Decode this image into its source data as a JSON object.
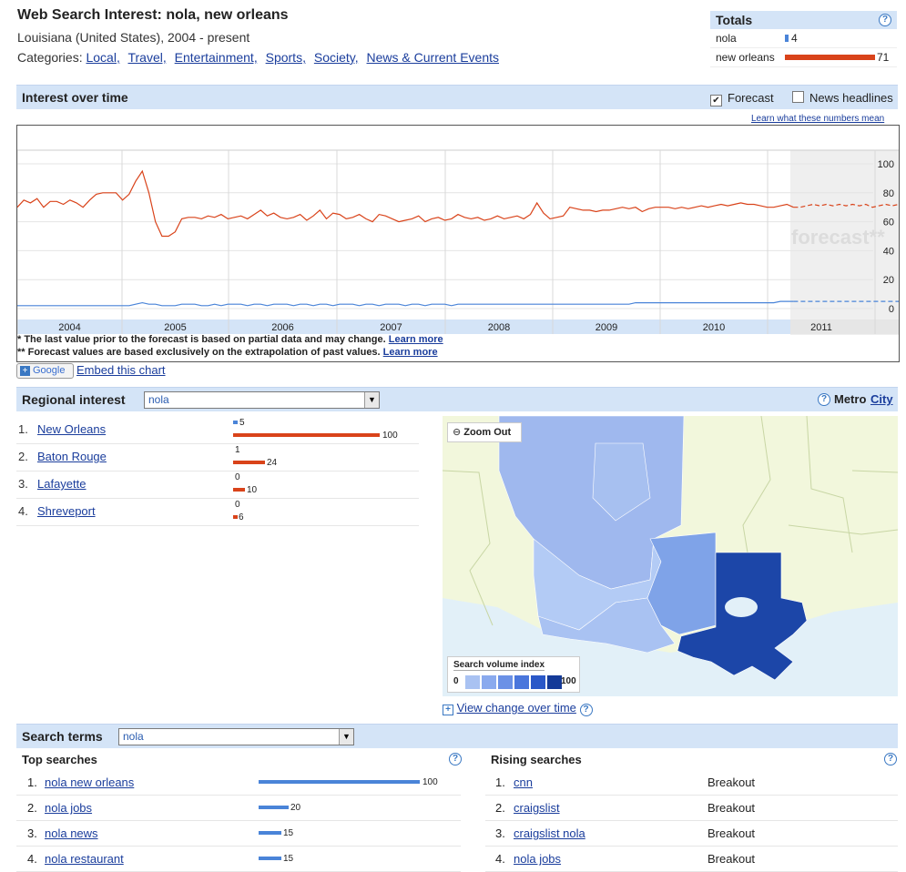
{
  "header": {
    "title": "Web Search Interest: nola, new orleans",
    "subtitle": "Louisiana (United States), 2004 - present",
    "categories_label": "Categories:",
    "categories": [
      "Local,",
      "Travel,",
      "Entertainment,",
      "Sports,",
      "Society,",
      "News & Current Events"
    ]
  },
  "totals": {
    "title": "Totals",
    "rows": [
      {
        "label": "nola",
        "value": "4",
        "color": "#4a84d8",
        "fraction": 0.056
      },
      {
        "label": "new orleans",
        "value": "71",
        "color": "#d9431a",
        "fraction": 1.0
      }
    ]
  },
  "interest": {
    "title": "Interest over time",
    "forecast_label": "Forecast",
    "forecast_checked": true,
    "news_label": "News headlines",
    "news_checked": false,
    "learn_link": "Learn what these numbers mean",
    "note1": "* The last value prior to the forecast is based on partial data and may change.",
    "note2": "** Forecast values are based exclusively on the extrapolation of past values.",
    "learn_more": "Learn more",
    "forecast_watermark": "forecast**",
    "google_button": "Google",
    "embed_link": "Embed this chart"
  },
  "chart_data": {
    "type": "line",
    "x_labels": [
      "2004",
      "2005",
      "2006",
      "2007",
      "2008",
      "2009",
      "2010",
      "2011"
    ],
    "y_ticks": [
      "100",
      "80",
      "60",
      "40",
      "20",
      "0"
    ],
    "ylim": [
      0,
      100
    ],
    "series": [
      {
        "name": "new orleans",
        "color": "#d9431a",
        "values": [
          70,
          75,
          73,
          76,
          70,
          74,
          74,
          72,
          75,
          73,
          70,
          75,
          79,
          80,
          80,
          80,
          75,
          79,
          88,
          95,
          80,
          60,
          50,
          50,
          53,
          62,
          63,
          63,
          62,
          64,
          63,
          65,
          62,
          63,
          64,
          62,
          65,
          68,
          64,
          66,
          63,
          62,
          63,
          65,
          61,
          64,
          68,
          62,
          66,
          65,
          62,
          63,
          65,
          62,
          60,
          65,
          64,
          62,
          60,
          61,
          62,
          64,
          60,
          62,
          63,
          61,
          62,
          65,
          63,
          62,
          63,
          61,
          62,
          64,
          62,
          63,
          64,
          62,
          65,
          73,
          66,
          62,
          63,
          64,
          70,
          69,
          68,
          68,
          67,
          68,
          68,
          69,
          70,
          69,
          70,
          67,
          69,
          70,
          70,
          70,
          69,
          70,
          69,
          70,
          71,
          70,
          71,
          72,
          71,
          72,
          73,
          72,
          72,
          71,
          70,
          70,
          71,
          72,
          70,
          70,
          71,
          72,
          71,
          72,
          71,
          72,
          71,
          72,
          71,
          72,
          70,
          71,
          72,
          71,
          72
        ],
        "forecast_from": 118
      },
      {
        "name": "nola",
        "color": "#4a84d8",
        "values": [
          2,
          2,
          2,
          2,
          2,
          2,
          2,
          2,
          2,
          2,
          2,
          2,
          2,
          2,
          2,
          2,
          2,
          2,
          3,
          4,
          3,
          3,
          2,
          2,
          2,
          3,
          3,
          3,
          2,
          2,
          3,
          2,
          3,
          3,
          3,
          2,
          3,
          3,
          2,
          3,
          3,
          3,
          2,
          3,
          3,
          2,
          3,
          3,
          2,
          3,
          3,
          3,
          2,
          3,
          3,
          2,
          3,
          3,
          3,
          2,
          3,
          3,
          2,
          3,
          3,
          3,
          2,
          3,
          3,
          3,
          3,
          3,
          3,
          3,
          3,
          3,
          3,
          3,
          3,
          3,
          3,
          3,
          3,
          3,
          3,
          3,
          3,
          3,
          3,
          3,
          3,
          3,
          3,
          3,
          4,
          4,
          4,
          4,
          4,
          4,
          4,
          4,
          4,
          4,
          4,
          4,
          4,
          4,
          4,
          4,
          4,
          4,
          4,
          4,
          4,
          4,
          5,
          5,
          5,
          5,
          5,
          5,
          5,
          5,
          5,
          5,
          5,
          5,
          5,
          5,
          5,
          5,
          5,
          5,
          5
        ],
        "forecast_from": 118
      }
    ]
  },
  "regional": {
    "title": "Regional interest",
    "select_value": "nola",
    "metro": "Metro",
    "city": "City",
    "rows": [
      {
        "rank": "1.",
        "name": "New Orleans",
        "a": "5",
        "b": "100",
        "a_frac": 0.05,
        "b_frac": 1.0
      },
      {
        "rank": "2.",
        "name": "Baton Rouge",
        "a": "1",
        "b": "24",
        "a_frac": 0.0,
        "b_frac": 0.24
      },
      {
        "rank": "3.",
        "name": "Lafayette",
        "a": "0",
        "b": "10",
        "a_frac": 0.0,
        "b_frac": 0.1
      },
      {
        "rank": "4.",
        "name": "Shreveport",
        "a": "0",
        "b": "6",
        "a_frac": 0.0,
        "b_frac": 0.06
      }
    ],
    "zoom_out": "Zoom Out",
    "legend_title": "Search volume index",
    "legend_min": "0",
    "legend_max": "100",
    "view_change": "View change over time"
  },
  "search_terms": {
    "title": "Search terms",
    "select_value": "nola",
    "top_title": "Top searches",
    "rising_title": "Rising searches",
    "top": [
      {
        "rank": "1.",
        "term": "nola new orleans",
        "value": "100",
        "frac": 1.0
      },
      {
        "rank": "2.",
        "term": "nola jobs",
        "value": "20",
        "frac": 0.2
      },
      {
        "rank": "3.",
        "term": "nola news",
        "value": "15",
        "frac": 0.15
      },
      {
        "rank": "4.",
        "term": "nola restaurant",
        "value": "15",
        "frac": 0.15
      }
    ],
    "rising": [
      {
        "rank": "1.",
        "term": "cnn",
        "value": "Breakout"
      },
      {
        "rank": "2.",
        "term": "craigslist",
        "value": "Breakout"
      },
      {
        "rank": "3.",
        "term": "craigslist nola",
        "value": "Breakout"
      },
      {
        "rank": "4.",
        "term": "nola jobs",
        "value": "Breakout"
      }
    ]
  }
}
